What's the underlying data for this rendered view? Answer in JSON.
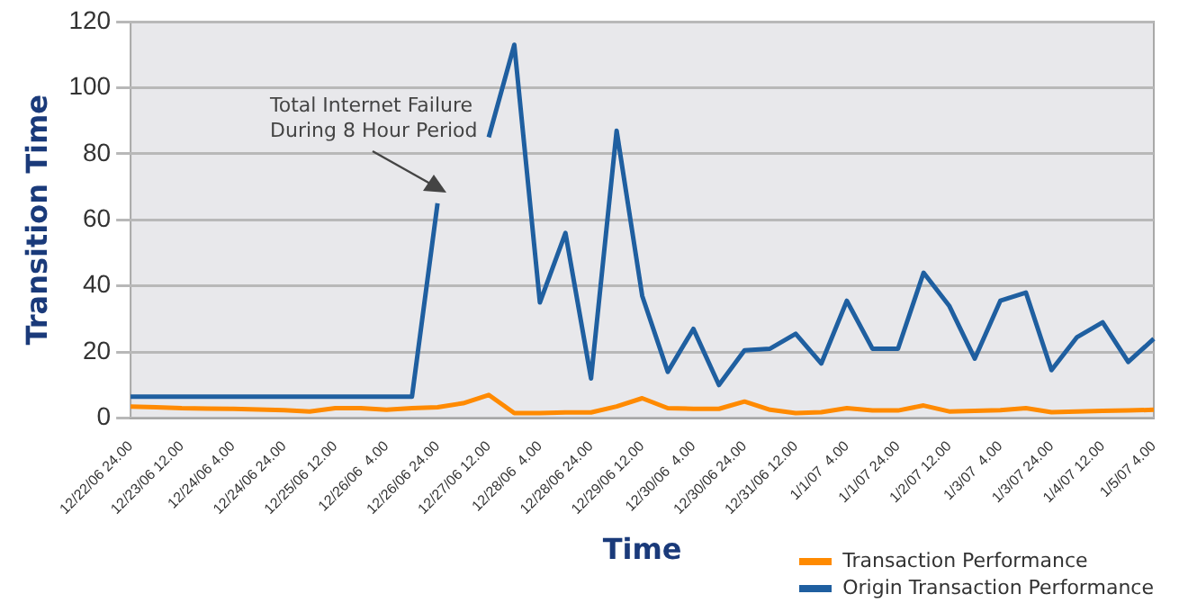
{
  "chart_data": {
    "type": "line",
    "xlabel": "Time",
    "ylabel": "Transition Time",
    "categories": [
      "12/22/06 24.00",
      null,
      "12/23/06 12.00",
      null,
      "12/24/06 4.00",
      null,
      "12/24/06 24.00",
      null,
      "12/25/06 12.00",
      null,
      "12/26/06  4.00",
      null,
      "12/26/06 24.00",
      null,
      "12/27/06 12.00",
      null,
      "12/28/06  4.00",
      null,
      "12/28/06 24.00",
      null,
      "12/29/06 12.00",
      null,
      "12/30/06  4.00",
      null,
      "12/30/06 24.00",
      null,
      "12/31/06 12.00",
      null,
      "1/1/07  4.00",
      null,
      "1/1/07 24.00",
      null,
      "1/2/07 12.00",
      null,
      "1/3/07  4.00",
      null,
      "1/3/07 24.00",
      null,
      "1/4/07 12.00",
      null,
      "1/5/07 4.00"
    ],
    "series": [
      {
        "name": "Transaction Performance",
        "color": "#ff8a00",
        "values": [
          3.5,
          3.3,
          3,
          2.9,
          2.8,
          2.6,
          2.4,
          2,
          3,
          3,
          2.5,
          3,
          3.3,
          4.5,
          7,
          1.5,
          1.5,
          1.7,
          1.7,
          3.5,
          6,
          3,
          2.8,
          2.8,
          5,
          2.5,
          1.5,
          1.8,
          3,
          2.3,
          2.3,
          3.8,
          2,
          2.2,
          2.4,
          3,
          1.8,
          2,
          2.2,
          2.3,
          2.5
        ]
      },
      {
        "name": "Origin Transaction Performance",
        "color": "#1f5fa0",
        "values": [
          6.5,
          6.5,
          6.5,
          6.5,
          6.5,
          6.5,
          6.5,
          6.5,
          6.5,
          6.5,
          6.5,
          6.5,
          65,
          null,
          85,
          113,
          35,
          56,
          12,
          87,
          37,
          14,
          27,
          10,
          20.5,
          21,
          25.5,
          16.5,
          35.5,
          21,
          21,
          44,
          34,
          18,
          35.5,
          38,
          14.5,
          24.5,
          29,
          17,
          24
        ]
      }
    ],
    "ylim": [
      0,
      120
    ],
    "yticks": [
      0,
      20,
      40,
      60,
      80,
      100,
      120
    ],
    "grid": "y",
    "legend": "bottom right",
    "marker": "none",
    "line_style": "solid",
    "annotations": [
      "Total Internet Failure\nDuring 8 Hour Period"
    ]
  }
}
